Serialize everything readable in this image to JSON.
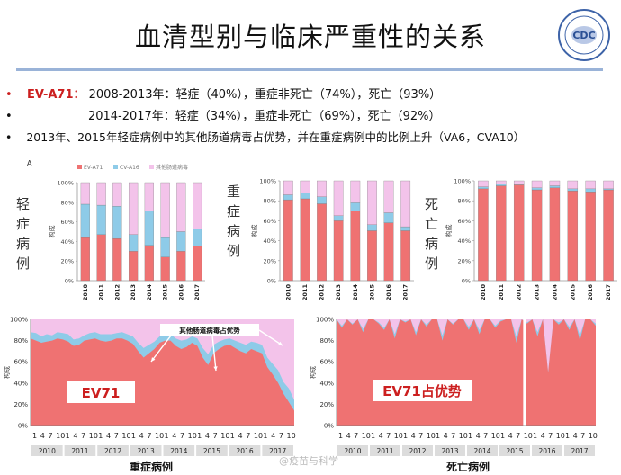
{
  "slide": {
    "title": "血清型别与临床严重性的关系",
    "bullets": [
      {
        "marker": "•",
        "lead": "EV-A71：",
        "text": "2008-2013年：轻症（40%），重症非死亡（74%），死亡（93%）"
      },
      {
        "marker": "•",
        "lead": "",
        "text": "2014-2017年：轻症（34%），重症非死亡（69%），死亡（92%）"
      },
      {
        "marker": "•",
        "lead": "",
        "text": "2013年、2015年轻症病例中的其他肠道病毒占优势，并在重症病例中的比例上升（VA6，CVA10）"
      }
    ],
    "panel_letter": "A",
    "legend": [
      "EV-A71",
      "CV-A16",
      "其他肠道病毒"
    ],
    "colors": {
      "ev71": "#ef7272",
      "cva16": "#8ecbe8",
      "other": "#f3c3ea",
      "accent": "#cc1f1f",
      "rule": "#9ab3d8"
    },
    "watermark": "@疫苗与科学",
    "logo_text": "CDC",
    "lower_labels": {
      "left_caption": "重症病例",
      "right_caption": "死亡病例",
      "left_big": "EV71",
      "right_big": "EV71占优势",
      "left_annotation": "其他肠道病毒占优势"
    }
  },
  "chart_data": [
    {
      "type": "bar",
      "stacked": true,
      "side_label": "轻症病例",
      "ylabel": "构成",
      "categories": [
        "2010",
        "2011",
        "2012",
        "2013",
        "2014",
        "2015",
        "2016",
        "2017"
      ],
      "yticks": [
        "0%",
        "20%",
        "40%",
        "60%",
        "80%",
        "100%"
      ],
      "ylim": [
        0,
        100
      ],
      "series": [
        {
          "name": "EV-A71",
          "values": [
            44,
            47,
            43,
            30,
            36,
            24,
            30,
            35
          ]
        },
        {
          "name": "CV-A16",
          "values": [
            34,
            30,
            33,
            17,
            35,
            20,
            20,
            18
          ]
        },
        {
          "name": "其他肠道病毒",
          "values": [
            22,
            23,
            24,
            53,
            29,
            56,
            50,
            47
          ]
        }
      ]
    },
    {
      "type": "bar",
      "stacked": true,
      "side_label": "重症病例",
      "ylabel": "构成",
      "categories": [
        "2010",
        "2011",
        "2012",
        "2013",
        "2014",
        "2015",
        "2016",
        "2017"
      ],
      "yticks": [
        "0%",
        "20%",
        "40%",
        "60%",
        "80%",
        "100%"
      ],
      "ylim": [
        0,
        100
      ],
      "series": [
        {
          "name": "EV-A71",
          "values": [
            81,
            82,
            77,
            60,
            70,
            50,
            58,
            50
          ]
        },
        {
          "name": "CV-A16",
          "values": [
            5,
            6,
            7,
            5,
            8,
            6,
            10,
            4
          ]
        },
        {
          "name": "其他肠道病毒",
          "values": [
            14,
            12,
            16,
            35,
            22,
            44,
            32,
            46
          ]
        }
      ]
    },
    {
      "type": "bar",
      "stacked": true,
      "side_label": "死亡病例",
      "ylabel": "构成",
      "categories": [
        "2010",
        "2011",
        "2012",
        "2013",
        "2014",
        "2015",
        "2016",
        "2017"
      ],
      "yticks": [
        "0%",
        "20%",
        "40%",
        "60%",
        "80%",
        "100%"
      ],
      "ylim": [
        0,
        100
      ],
      "series": [
        {
          "name": "EV-A71",
          "values": [
            92,
            95,
            96,
            91,
            93,
            90,
            89,
            91
          ]
        },
        {
          "name": "CV-A16",
          "values": [
            2,
            2,
            1,
            2,
            2,
            2,
            3,
            1
          ]
        },
        {
          "name": "其他肠道病毒",
          "values": [
            6,
            3,
            3,
            7,
            5,
            8,
            8,
            8
          ]
        }
      ]
    },
    {
      "type": "area",
      "stacked": true,
      "title": "重症病例",
      "ylabel": "构成",
      "yticks": [
        "0%",
        "10%",
        "20%",
        "30%",
        "40%",
        "50%",
        "60%",
        "70%",
        "80%",
        "90%",
        "100%"
      ],
      "ylim": [
        0,
        100
      ],
      "month_ticks": [
        "1",
        "4",
        "7",
        "10"
      ],
      "years": [
        "2010",
        "2011",
        "2012",
        "2013",
        "2014",
        "2015",
        "2016",
        "2017"
      ],
      "series": [
        {
          "name": "EV-A71",
          "values": [
            82,
            80,
            78,
            79,
            80,
            82,
            81,
            79,
            75,
            76,
            80,
            81,
            82,
            80,
            79,
            80,
            82,
            82,
            80,
            77,
            70,
            64,
            68,
            72,
            78,
            80,
            80,
            75,
            72,
            74,
            78,
            75,
            64,
            57,
            68,
            72,
            75,
            76,
            73,
            70,
            68,
            72,
            70,
            68,
            55,
            48,
            40,
            30,
            22,
            14
          ]
        },
        {
          "name": "CV-A16",
          "values": [
            6,
            7,
            6,
            7,
            5,
            6,
            6,
            7,
            6,
            6,
            5,
            6,
            6,
            6,
            7,
            6,
            5,
            6,
            6,
            7,
            8,
            9,
            8,
            7,
            6,
            6,
            6,
            7,
            8,
            7,
            6,
            7,
            9,
            10,
            8,
            7,
            6,
            6,
            7,
            8,
            8,
            7,
            8,
            8,
            9,
            10,
            12,
            11,
            13,
            10
          ]
        },
        {
          "name": "其他肠道病毒",
          "values": [
            12,
            13,
            16,
            14,
            15,
            12,
            13,
            14,
            19,
            18,
            15,
            13,
            12,
            14,
            14,
            14,
            13,
            12,
            14,
            16,
            22,
            27,
            24,
            21,
            16,
            14,
            14,
            18,
            20,
            19,
            16,
            18,
            27,
            33,
            24,
            21,
            19,
            18,
            20,
            22,
            24,
            21,
            22,
            24,
            36,
            42,
            48,
            59,
            65,
            76
          ]
        }
      ]
    },
    {
      "type": "area",
      "stacked": true,
      "title": "死亡病例",
      "ylabel": "构成",
      "yticks": [
        "0%",
        "10%",
        "20%",
        "30%",
        "40%",
        "50%",
        "60%",
        "70%",
        "80%",
        "90%",
        "100%"
      ],
      "ylim": [
        0,
        100
      ],
      "month_ticks": [
        "1",
        "4",
        "7",
        "10"
      ],
      "years": [
        "2010",
        "2011",
        "2012",
        "2013",
        "2014",
        "2015",
        "2016",
        "2017"
      ],
      "series": [
        {
          "name": "EV-A71",
          "values": [
            100,
            92,
            100,
            95,
            100,
            88,
            100,
            100,
            96,
            90,
            100,
            82,
            100,
            97,
            100,
            85,
            100,
            93,
            100,
            100,
            80,
            100,
            95,
            100,
            100,
            90,
            100,
            86,
            100,
            100,
            92,
            98,
            100,
            100,
            78,
            100,
            96,
            100,
            84,
            100,
            50,
            100,
            95,
            100,
            90,
            100,
            80,
            100,
            100,
            94
          ]
        },
        {
          "name": "CV-A16",
          "values": [
            0,
            2,
            0,
            1,
            0,
            3,
            0,
            0,
            1,
            2,
            0,
            4,
            0,
            1,
            0,
            3,
            0,
            2,
            0,
            0,
            5,
            0,
            1,
            0,
            0,
            3,
            0,
            4,
            0,
            0,
            2,
            1,
            0,
            0,
            6,
            0,
            1,
            0,
            4,
            0,
            0,
            0,
            2,
            0,
            3,
            0,
            5,
            0,
            0,
            2
          ]
        },
        {
          "name": "其他肠道病毒",
          "values": [
            0,
            6,
            0,
            4,
            0,
            9,
            0,
            0,
            3,
            8,
            0,
            14,
            0,
            2,
            0,
            12,
            0,
            5,
            0,
            0,
            15,
            0,
            4,
            0,
            0,
            7,
            0,
            10,
            0,
            0,
            6,
            1,
            0,
            0,
            16,
            0,
            3,
            0,
            12,
            0,
            50,
            0,
            3,
            0,
            7,
            0,
            15,
            0,
            0,
            4
          ]
        }
      ]
    }
  ]
}
